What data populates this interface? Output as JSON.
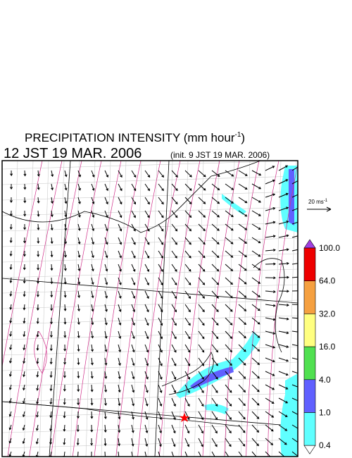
{
  "header": {
    "title": {
      "text": "PRECIPITATION INTENSITY (mm hour",
      "superscript": "-1",
      "close": ")"
    },
    "valid_time": "12 JST 19 MAR. 2006",
    "init_time": "(init. 9 JST 19 MAR. 2006)"
  },
  "wind_scale": {
    "text": "20 ms",
    "superscript": "-1"
  },
  "colorbar": {
    "labels": [
      "100.0",
      "64.0",
      "32.0",
      "16.0",
      "4.0",
      "1.0",
      "0.4"
    ],
    "colors": [
      "#ee0000",
      "#f5a040",
      "#ffff80",
      "#50e050",
      "#6060ff",
      "#60ffff"
    ],
    "over_color": "#a040e0",
    "under_color": "#ffffff"
  }
}
